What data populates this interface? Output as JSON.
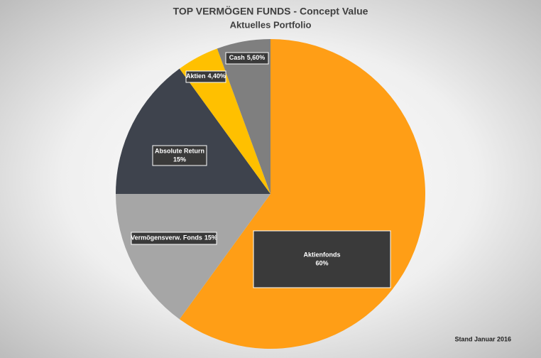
{
  "chart_data": {
    "type": "pie",
    "title": "TOP VERMÖGEN FUNDS - Concept Value",
    "subtitle": "Aktuelles Portfolio",
    "categories": [
      "Aktienfonds",
      "Vermögensverw. Fonds",
      "Absolute Return",
      "Aktien",
      "Cash"
    ],
    "values": [
      60,
      15,
      15,
      4.4,
      5.6
    ],
    "value_labels": [
      "60%",
      "15%",
      "15%",
      "4,40%",
      "5,60%"
    ],
    "colors": [
      "#ff9e16",
      "#a6a6a6",
      "#3e434d",
      "#ffc000",
      "#7f7f7f"
    ],
    "note": "Stand Januar 2016"
  }
}
